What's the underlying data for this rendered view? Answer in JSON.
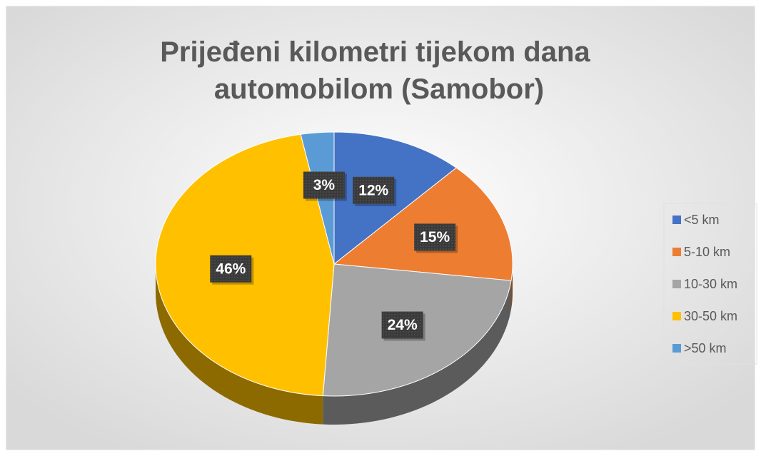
{
  "chart_data": {
    "type": "pie",
    "title": "Prijeđeni kilometri tijekom dana automobilom (Samobor)",
    "categories": [
      "<5 km",
      "5-10 km",
      "10-30 km",
      "30-50 km",
      ">50 km"
    ],
    "values": [
      12,
      15,
      24,
      46,
      3
    ],
    "value_labels": [
      "12%",
      "15%",
      "24%",
      "46%",
      "3%"
    ],
    "colors": [
      "#4472c4",
      "#ed7d31",
      "#a5a5a5",
      "#ffc000",
      "#5b9bd5"
    ],
    "legend": "right"
  }
}
